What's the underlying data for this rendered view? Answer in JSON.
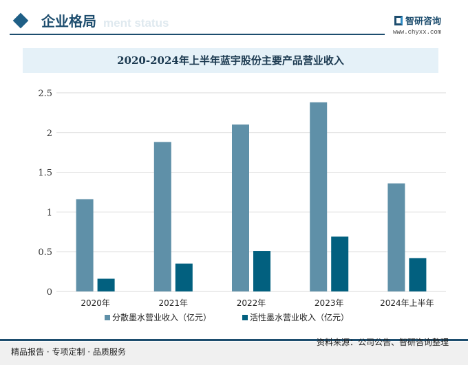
{
  "header": {
    "section_title": "企业格局",
    "ghost_text": "ment status",
    "logo_text": "智研咨询",
    "url": "www.chyxx.com"
  },
  "footer": {
    "left": "精品报告 · 专项定制 · 品质服务",
    "source": "资料来源：公司公告、智研咨询整理"
  },
  "colors": {
    "series1": "#5f90a8",
    "series2": "#02607f",
    "accent": "#1d4d6e"
  },
  "chart_data": {
    "type": "bar",
    "title": "2020-2024年上半年蓝宇股份主要产品营业收入",
    "categories": [
      "2020年",
      "2021年",
      "2022年",
      "2023年",
      "2024年上半年"
    ],
    "series": [
      {
        "name": "分散墨水营业收入（亿元）",
        "values": [
          1.16,
          1.88,
          2.1,
          2.38,
          1.36
        ]
      },
      {
        "name": "活性墨水营业收入（亿元）",
        "values": [
          0.16,
          0.35,
          0.51,
          0.69,
          0.42
        ]
      }
    ],
    "ylim": [
      0,
      2.5
    ],
    "yticks": [
      "0",
      "0.5",
      "1",
      "1.5",
      "2",
      "2.5"
    ],
    "grid": true,
    "legend": "bottom"
  }
}
